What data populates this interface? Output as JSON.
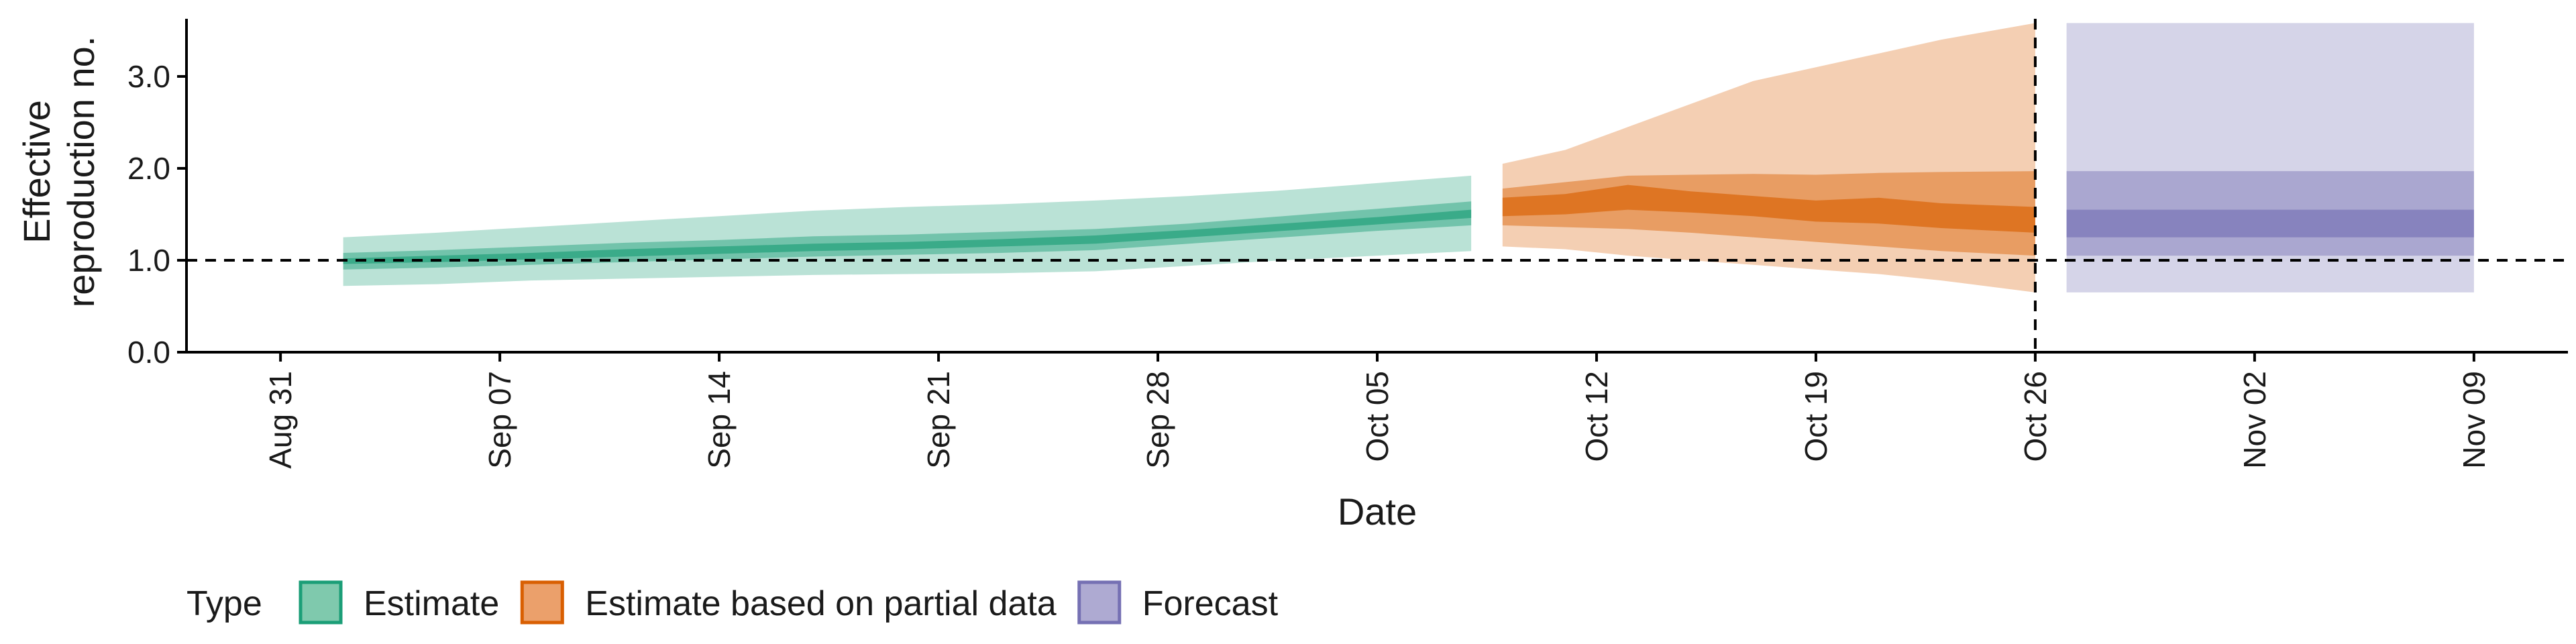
{
  "chart_data": {
    "type": "area",
    "xlabel": "Date",
    "ylabel_lines": [
      "Effective",
      "reproduction no."
    ],
    "ylim": [
      0,
      3.7
    ],
    "xlim": [
      "2020-08-28",
      "2020-11-12"
    ],
    "y_ticks": [
      {
        "value": 0,
        "label": "0.0"
      },
      {
        "value": 1,
        "label": "1.0"
      },
      {
        "value": 2,
        "label": "2.0"
      },
      {
        "value": 3,
        "label": "3.0"
      }
    ],
    "x_ticks": [
      {
        "date": "2020-08-31",
        "label": "Aug 31"
      },
      {
        "date": "2020-09-07",
        "label": "Sep 07"
      },
      {
        "date": "2020-09-14",
        "label": "Sep 14"
      },
      {
        "date": "2020-09-21",
        "label": "Sep 21"
      },
      {
        "date": "2020-09-28",
        "label": "Sep 28"
      },
      {
        "date": "2020-10-05",
        "label": "Oct 05"
      },
      {
        "date": "2020-10-12",
        "label": "Oct 12"
      },
      {
        "date": "2020-10-19",
        "label": "Oct 19"
      },
      {
        "date": "2020-10-26",
        "label": "Oct 26"
      },
      {
        "date": "2020-11-02",
        "label": "Nov 02"
      },
      {
        "date": "2020-11-09",
        "label": "Nov 09"
      }
    ],
    "reference_lines": {
      "horizontal_y": 1.0,
      "vertical_date": "2020-10-26"
    },
    "legend": {
      "title": "Type",
      "position": "bottom-left",
      "entries": [
        {
          "label": "Estimate",
          "fill": "#7fc9ad",
          "stroke": "#1b9e77"
        },
        {
          "label": "Estimate based on partial data",
          "fill": "#eba06b",
          "stroke": "#d95f02"
        },
        {
          "label": "Forecast",
          "fill": "#aeaad2",
          "stroke": "#7570b3"
        }
      ]
    },
    "series": [
      {
        "name": "Estimate",
        "color": "#1b9e77",
        "x": [
          "2020-09-02",
          "2020-09-05",
          "2020-09-08",
          "2020-09-11",
          "2020-09-14",
          "2020-09-17",
          "2020-09-20",
          "2020-09-23",
          "2020-09-26",
          "2020-09-29",
          "2020-10-02",
          "2020-10-05",
          "2020-10-08"
        ],
        "lower90": [
          0.72,
          0.74,
          0.78,
          0.8,
          0.82,
          0.84,
          0.85,
          0.86,
          0.88,
          0.94,
          1.0,
          1.05,
          1.1
        ],
        "upper90": [
          1.25,
          1.3,
          1.36,
          1.42,
          1.48,
          1.54,
          1.58,
          1.61,
          1.65,
          1.7,
          1.76,
          1.84,
          1.92
        ],
        "lower50": [
          0.9,
          0.92,
          0.95,
          0.98,
          1.01,
          1.04,
          1.06,
          1.08,
          1.11,
          1.18,
          1.25,
          1.32,
          1.38
        ],
        "upper50": [
          1.08,
          1.11,
          1.15,
          1.19,
          1.22,
          1.26,
          1.28,
          1.31,
          1.34,
          1.4,
          1.48,
          1.56,
          1.64
        ],
        "lower20": [
          0.96,
          0.98,
          1.01,
          1.04,
          1.07,
          1.1,
          1.12,
          1.15,
          1.18,
          1.25,
          1.32,
          1.39,
          1.46
        ],
        "upper20": [
          1.02,
          1.05,
          1.08,
          1.12,
          1.15,
          1.18,
          1.2,
          1.23,
          1.27,
          1.33,
          1.4,
          1.47,
          1.55
        ]
      },
      {
        "name": "Estimate based on partial data",
        "color": "#d95f02",
        "x": [
          "2020-10-09",
          "2020-10-11",
          "2020-10-13",
          "2020-10-15",
          "2020-10-17",
          "2020-10-19",
          "2020-10-21",
          "2020-10-23",
          "2020-10-26"
        ],
        "lower90": [
          1.15,
          1.12,
          1.05,
          1.0,
          0.95,
          0.9,
          0.85,
          0.78,
          0.65
        ],
        "upper90": [
          2.05,
          2.2,
          2.45,
          2.7,
          2.95,
          3.1,
          3.25,
          3.4,
          3.58
        ],
        "lower50": [
          1.38,
          1.36,
          1.34,
          1.3,
          1.25,
          1.2,
          1.15,
          1.1,
          1.05
        ],
        "upper50": [
          1.78,
          1.85,
          1.92,
          1.93,
          1.94,
          1.93,
          1.95,
          1.96,
          1.97
        ],
        "lower20": [
          1.48,
          1.5,
          1.55,
          1.52,
          1.48,
          1.42,
          1.4,
          1.35,
          1.3
        ],
        "upper20": [
          1.68,
          1.72,
          1.82,
          1.75,
          1.7,
          1.65,
          1.68,
          1.62,
          1.58
        ]
      },
      {
        "name": "Forecast",
        "color": "#7570b3",
        "x": [
          "2020-10-27",
          "2020-11-09"
        ],
        "lower90": [
          0.65,
          0.65
        ],
        "upper90": [
          3.58,
          3.58
        ],
        "lower50": [
          1.05,
          1.05
        ],
        "upper50": [
          1.97,
          1.97
        ],
        "lower20": [
          1.25,
          1.25
        ],
        "upper20": [
          1.55,
          1.55
        ]
      }
    ],
    "band_opacity": {
      "p90": 0.3,
      "p50": 0.45,
      "p20": 0.65
    }
  }
}
